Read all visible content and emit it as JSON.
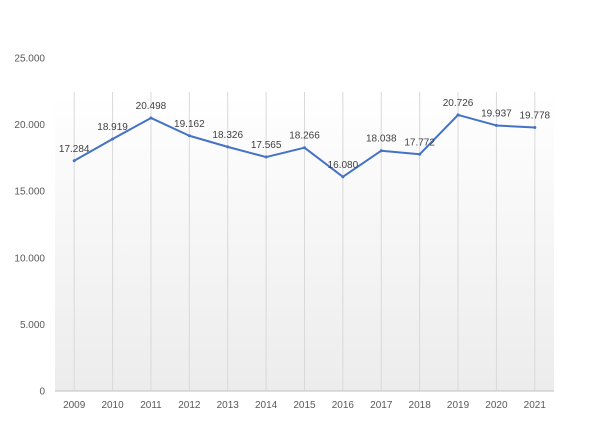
{
  "chart_data": {
    "type": "line",
    "title": "",
    "xlabel": "",
    "ylabel": "",
    "categories": [
      "2009",
      "2010",
      "2011",
      "2012",
      "2013",
      "2014",
      "2015",
      "2016",
      "2017",
      "2018",
      "2019",
      "2020",
      "2021"
    ],
    "values": [
      17.284,
      18.919,
      20.498,
      19.162,
      18.326,
      17.565,
      18.266,
      16.08,
      18.038,
      17.772,
      20.726,
      19.937,
      19.778
    ],
    "data_labels": [
      "17.284",
      "18.919",
      "20.498",
      "19.162",
      "18.326",
      "17.565",
      "18.266",
      "16.080",
      "18.038",
      "17.772",
      "20.726",
      "19.937",
      "19.778"
    ],
    "ylim": [
      0,
      25
    ],
    "y_ticks": [
      0,
      5,
      10,
      15,
      20,
      25
    ],
    "y_tick_labels": [
      "0",
      "5.000",
      "10.000",
      "15.000",
      "20.000",
      "25.000"
    ],
    "grid": "vertical lines",
    "legend": "none",
    "colors": {
      "line": "#4472c4",
      "gridline": "#d9d9d9",
      "axis": "#bfbfbf",
      "plot_gradient_top": "#ffffff",
      "plot_gradient_bottom": "#ececec"
    }
  }
}
